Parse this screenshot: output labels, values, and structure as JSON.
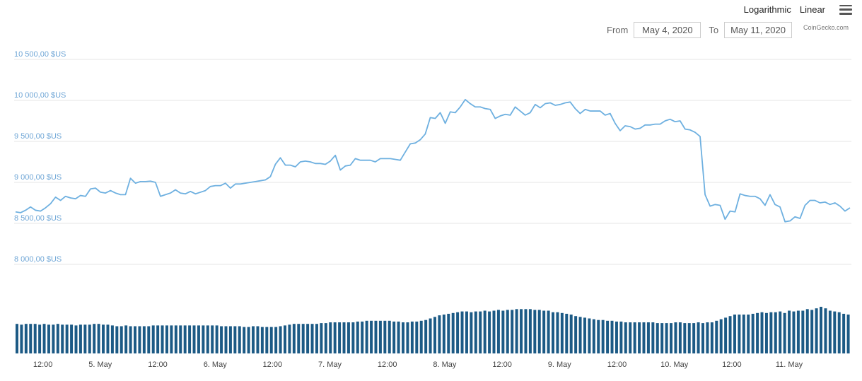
{
  "controls": {
    "logarithmic_label": "Logarithmic",
    "linear_label": "Linear",
    "menu_icon": "hamburger-menu-icon",
    "from_label": "From",
    "from_value": "May 4, 2020",
    "to_label": "To",
    "to_value": "May 11, 2020",
    "credit": "CoinGecko.com"
  },
  "colors": {
    "price_line": "#6eb0e0",
    "volume_bar": "#1c5a85",
    "gridline": "#e6e6e6",
    "axis_label": "#6fa6d6"
  },
  "chart_data": [
    {
      "type": "line",
      "ylim": [
        7950,
        10600
      ],
      "yticks": [
        10500,
        10000,
        9500,
        9000,
        8500,
        8000
      ],
      "ytick_labels": [
        "10 500,00 $US",
        "10 000,00 $US",
        "9 500,00 $US",
        "9 000,00 $US",
        "8 500,00 $US",
        "8 000,00 $US"
      ],
      "xlim_hours": [
        0,
        175
      ],
      "xtick_hours": [
        6,
        18,
        30,
        42,
        54,
        66,
        78,
        90,
        102,
        114,
        126,
        138,
        150,
        162
      ],
      "xtick_labels": [
        "12:00",
        "5. May",
        "12:00",
        "6. May",
        "12:00",
        "7. May",
        "12:00",
        "8. May",
        "12:00",
        "9. May",
        "12:00",
        "10. May",
        "12:00",
        "11. May"
      ],
      "grid": true,
      "series": [
        {
          "values": [
            8640,
            8630,
            8660,
            8700,
            8660,
            8650,
            8690,
            8740,
            8820,
            8780,
            8830,
            8810,
            8800,
            8840,
            8830,
            8920,
            8930,
            8880,
            8870,
            8900,
            8870,
            8850,
            8850,
            9050,
            8990,
            9010,
            9010,
            9015,
            9000,
            8830,
            8850,
            8870,
            8910,
            8870,
            8860,
            8890,
            8860,
            8880,
            8900,
            8950,
            8960,
            8960,
            8990,
            8930,
            8980,
            8980,
            8990,
            9000,
            9010,
            9020,
            9030,
            9070,
            9220,
            9300,
            9210,
            9210,
            9190,
            9250,
            9260,
            9250,
            9230,
            9230,
            9220,
            9260,
            9330,
            9150,
            9200,
            9210,
            9290,
            9270,
            9270,
            9270,
            9250,
            9290,
            9290,
            9290,
            9280,
            9270,
            9370,
            9470,
            9480,
            9520,
            9590,
            9790,
            9780,
            9850,
            9720,
            9860,
            9850,
            9920,
            10010,
            9960,
            9920,
            9920,
            9900,
            9890,
            9780,
            9810,
            9830,
            9820,
            9920,
            9870,
            9820,
            9850,
            9950,
            9910,
            9960,
            9970,
            9940,
            9950,
            9970,
            9980,
            9900,
            9840,
            9890,
            9870,
            9870,
            9870,
            9820,
            9840,
            9720,
            9630,
            9690,
            9680,
            9650,
            9660,
            9700,
            9700,
            9710,
            9710,
            9750,
            9770,
            9740,
            9750,
            9650,
            9640,
            9610,
            9560,
            8850,
            8710,
            8730,
            8720,
            8550,
            8650,
            8640,
            8860,
            8840,
            8830,
            8830,
            8800,
            8720,
            8850,
            8730,
            8700,
            8520,
            8530,
            8580,
            8560,
            8720,
            8780,
            8780,
            8750,
            8760,
            8730,
            8750,
            8710,
            8650,
            8690
          ]
        }
      ]
    },
    {
      "type": "bar",
      "series": [
        {
          "values": [
            38,
            37,
            38,
            38,
            38,
            37,
            38,
            37,
            37,
            38,
            37,
            37,
            37,
            36,
            37,
            37,
            37,
            38,
            38,
            37,
            37,
            36,
            35,
            35,
            36,
            35,
            35,
            35,
            35,
            35,
            36,
            36,
            36,
            36,
            36,
            36,
            36,
            36,
            36,
            36,
            36,
            36,
            36,
            36,
            36,
            35,
            35,
            35,
            35,
            35,
            34,
            34,
            35,
            35,
            34,
            34,
            34,
            34,
            35,
            36,
            37,
            38,
            38,
            38,
            38,
            38,
            38,
            39,
            39,
            40,
            40,
            40,
            40,
            40,
            40,
            41,
            41,
            42,
            42,
            42,
            42,
            42,
            42,
            41,
            41,
            40,
            40,
            41,
            41,
            42,
            43,
            45,
            47,
            49,
            50,
            51,
            52,
            53,
            54,
            54,
            53,
            54,
            54,
            55,
            54,
            55,
            56,
            55,
            56,
            56,
            57,
            57,
            57,
            57,
            56,
            56,
            55,
            55,
            53,
            53,
            52,
            51,
            50,
            48,
            47,
            46,
            45,
            44,
            43,
            43,
            42,
            42,
            41,
            41,
            40,
            40,
            40,
            40,
            40,
            40,
            40,
            39,
            39,
            39,
            39,
            40,
            40,
            39,
            39,
            39,
            40,
            39,
            40,
            40,
            42,
            44,
            46,
            48,
            50,
            50,
            50,
            50,
            51,
            52,
            53,
            52,
            53,
            53,
            54,
            52,
            55,
            54,
            55,
            55,
            57,
            56,
            58,
            60,
            58,
            55,
            54,
            53,
            51,
            50
          ]
        }
      ]
    }
  ]
}
